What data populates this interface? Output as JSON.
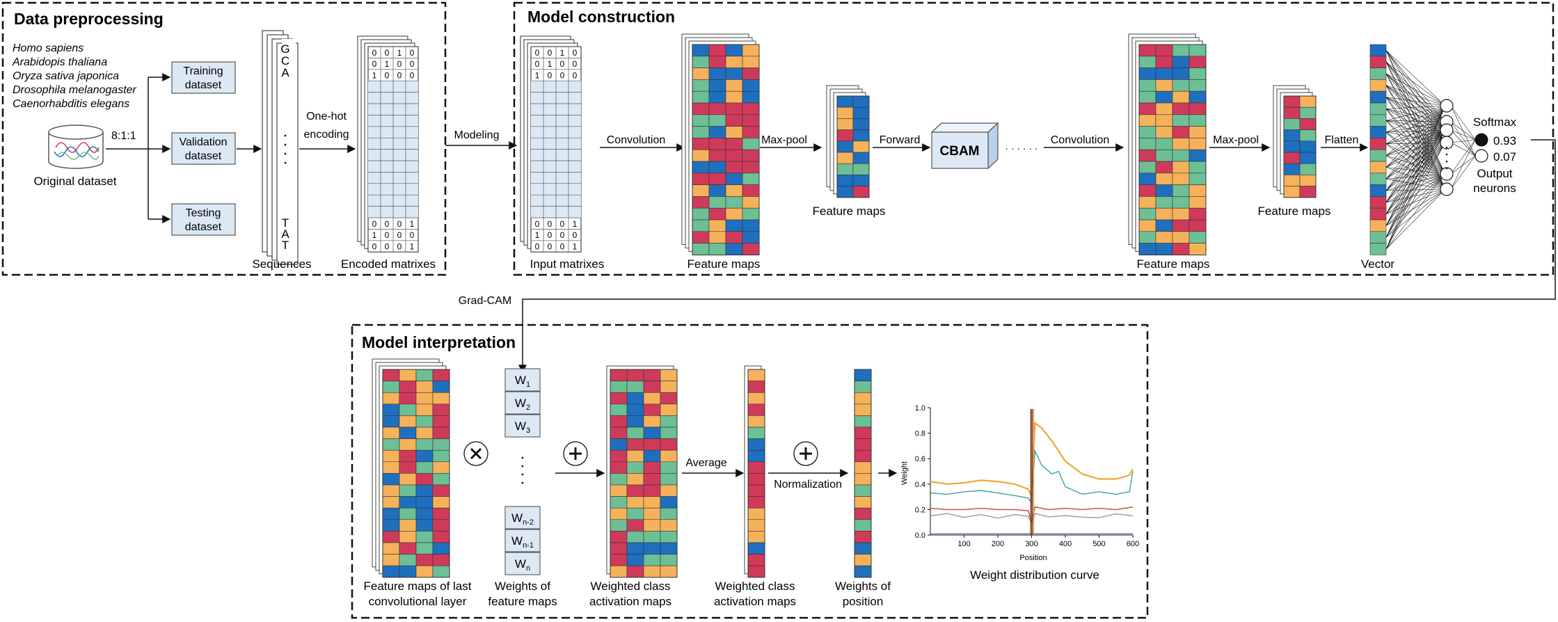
{
  "colors": {
    "red": "#d03a5a",
    "blue": "#1f6fbf",
    "green": "#6dbf96",
    "orange": "#f6b25a",
    "light_blue": "#dce9f5",
    "box_fill": "#dce9f5",
    "orange_curve": "#f2a531",
    "teal_curve": "#3aa0a5",
    "red_curve": "#c9403a",
    "gray_curve": "#9a9a9a",
    "purple_curve": "#7b6bb0"
  },
  "panels": {
    "preprocessing": {
      "title": "Data preprocessing",
      "species": [
        "Homo sapiens",
        "Arabidopis thaliana",
        "Oryza sativa japonica",
        "Drosophila melanogaster",
        "Caenorhabditis elegans"
      ],
      "original_dataset": "Original dataset",
      "split_ratio": "8:1:1",
      "training": [
        "Training",
        "dataset"
      ],
      "validation": [
        "Validation",
        "dataset"
      ],
      "testing": [
        "Testing",
        "dataset"
      ],
      "seq_top": [
        "G",
        "C",
        "A"
      ],
      "seq_bottom": [
        "T",
        "A",
        "T"
      ],
      "sequences_label": "Sequences",
      "onehot_label": [
        "One-hot",
        "encoding"
      ],
      "encoded_label": "Encoded matrixes",
      "matrix_top_rows": [
        [
          "0",
          "0",
          "1",
          "0"
        ],
        [
          "0",
          "1",
          "0",
          "0"
        ],
        [
          "1",
          "0",
          "0",
          "0"
        ]
      ],
      "matrix_bottom_rows": [
        [
          "0",
          "0",
          "0",
          "1"
        ],
        [
          "1",
          "0",
          "0",
          "0"
        ],
        [
          "0",
          "0",
          "0",
          "1"
        ]
      ]
    },
    "construction": {
      "title": "Model construction",
      "modeling": "Modeling",
      "input_label": "Input matrixes",
      "convolution1": "Convolution",
      "feature_maps1": "Feature maps",
      "maxpool1": "Max-pool",
      "feature_maps2": "Feature maps",
      "forward": "Forward",
      "cbam": "CBAM",
      "dots": "· · · · · ·",
      "convolution2": "Convolution",
      "feature_maps3": "Feature maps",
      "maxpool2": "Max-pool",
      "feature_maps4": "Feature maps",
      "flatten": "Flatten",
      "vector": "Vector",
      "softmax": "Softmax",
      "out1": "0.93",
      "out2": "0.07",
      "output_neurons": [
        "Output",
        "neurons"
      ]
    },
    "gradcam": "Grad-CAM",
    "interpretation": {
      "title": "Model interpretation",
      "fm_label": [
        "Feature maps of last",
        "convolutional layer"
      ],
      "weights_boxes": [
        {
          "base": "W",
          "sub": "1"
        },
        {
          "base": "W",
          "sub": "2"
        },
        {
          "base": "W",
          "sub": "3"
        },
        {
          "base": "W",
          "sub": "n-2"
        },
        {
          "base": "W",
          "sub": "n-1"
        },
        {
          "base": "W",
          "sub": "n"
        }
      ],
      "weights_label": [
        "Weights of",
        "feature maps"
      ],
      "wcam_label1": [
        "Weighted class",
        "activation maps"
      ],
      "average": "Average",
      "wcam_label2": [
        "Weighted class",
        "activation maps"
      ],
      "normalization": "Normalization",
      "wpos_label": [
        "Weights of",
        "position"
      ],
      "curve_title": "Weight distribution curve"
    }
  },
  "chart_data": {
    "type": "line",
    "xlabel": "Position",
    "ylabel": "Weight",
    "xlim": [
      0,
      600
    ],
    "ylim": [
      0,
      1.0
    ],
    "xticks": [
      "100",
      "200",
      "300",
      "400",
      "500",
      "600"
    ],
    "yticks": [
      "0.0",
      "0.2",
      "0.4",
      "0.6",
      "0.8",
      "1.0"
    ],
    "series": [
      {
        "color_key": "orange_curve",
        "x": [
          0,
          50,
          100,
          150,
          200,
          250,
          290,
          300,
          310,
          330,
          360,
          400,
          450,
          500,
          550,
          590,
          600
        ],
        "y": [
          0.42,
          0.4,
          0.41,
          0.43,
          0.42,
          0.4,
          0.36,
          0.3,
          0.88,
          0.84,
          0.74,
          0.58,
          0.48,
          0.44,
          0.44,
          0.47,
          0.52
        ]
      },
      {
        "color_key": "teal_curve",
        "x": [
          0,
          50,
          100,
          150,
          200,
          250,
          290,
          300,
          310,
          330,
          360,
          380,
          400,
          450,
          500,
          550,
          590,
          600
        ],
        "y": [
          0.33,
          0.32,
          0.34,
          0.35,
          0.33,
          0.31,
          0.29,
          0.25,
          0.66,
          0.55,
          0.48,
          0.5,
          0.38,
          0.32,
          0.34,
          0.32,
          0.34,
          0.5
        ]
      },
      {
        "color_key": "red_curve",
        "x": [
          0,
          50,
          100,
          150,
          200,
          250,
          290,
          300,
          310,
          350,
          400,
          450,
          500,
          550,
          600
        ],
        "y": [
          0.21,
          0.2,
          0.2,
          0.21,
          0.2,
          0.2,
          0.19,
          0.1,
          0.22,
          0.2,
          0.21,
          0.2,
          0.21,
          0.2,
          0.22
        ]
      },
      {
        "color_key": "gray_curve",
        "x": [
          0,
          50,
          100,
          150,
          200,
          250,
          290,
          300,
          310,
          350,
          400,
          450,
          500,
          550,
          600
        ],
        "y": [
          0.15,
          0.16,
          0.13,
          0.16,
          0.14,
          0.17,
          0.15,
          0.08,
          0.16,
          0.14,
          0.16,
          0.15,
          0.14,
          0.16,
          0.15
        ]
      },
      {
        "color_key": "purple_curve",
        "x": [
          0,
          100,
          200,
          300,
          400,
          500,
          600
        ],
        "y": [
          0.01,
          0.01,
          0.01,
          0.01,
          0.01,
          0.01,
          0.01
        ]
      }
    ],
    "spike_x": 300
  }
}
